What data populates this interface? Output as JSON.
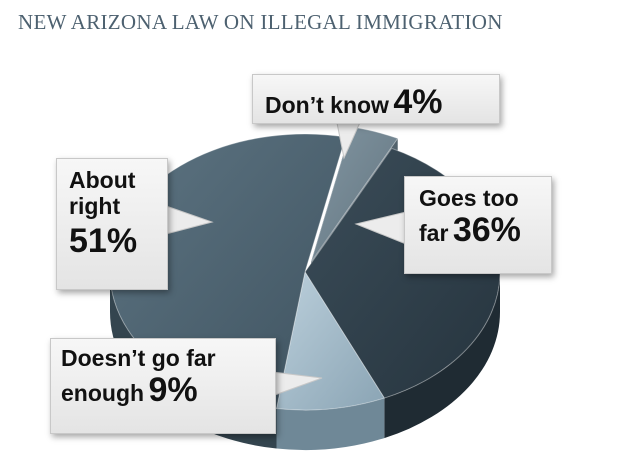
{
  "title": "NEW ARIZONA LAW ON ILLEGAL IMMIGRATION",
  "chart_data": {
    "type": "pie",
    "title": "NEW ARIZONA LAW ON ILLEGAL IMMIGRATION",
    "series": [
      {
        "label": "Don’t know",
        "value": 4,
        "value_label": "4%",
        "color": "#6e808c"
      },
      {
        "label": "Goes too far",
        "value": 36,
        "value_label": "36%",
        "color": "#2e3f4b"
      },
      {
        "label": "Doesn’t go far enough",
        "value": 9,
        "value_label": "9%",
        "color": "#9db6c6"
      },
      {
        "label": "About right",
        "value": 51,
        "value_label": "51%",
        "color": "#4f6572"
      }
    ]
  },
  "callouts": {
    "dont_know": {
      "line1": "Don’t know",
      "pct": "4%"
    },
    "too_far": {
      "line1": "Goes too",
      "line2": "far",
      "pct": "36%"
    },
    "not_far_enough": {
      "line1": "Doesn’t go far",
      "line2": "enough",
      "pct": "9%"
    },
    "about_right": {
      "line1": "About",
      "line2": "right",
      "pct": "51%"
    }
  }
}
